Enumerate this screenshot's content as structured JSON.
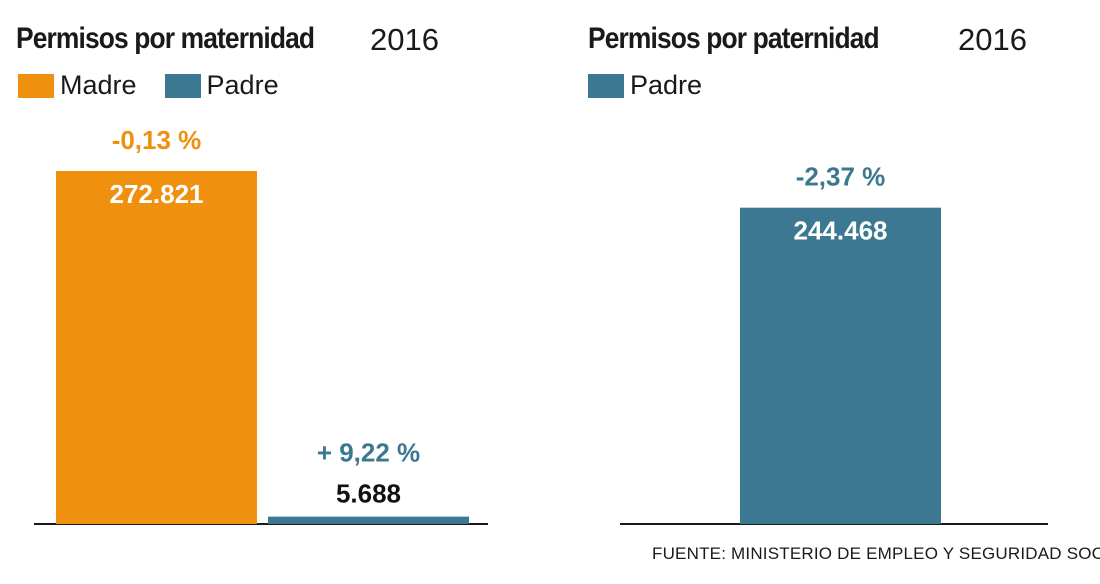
{
  "colors": {
    "madre": "#f0900f",
    "padre": "#3c7891",
    "axis": "#1a1a1a"
  },
  "chart_data": [
    {
      "type": "bar",
      "title": "Permisos por maternidad",
      "year": "2016",
      "categories": [
        "Madre",
        "Padre"
      ],
      "values": [
        272821,
        5688
      ],
      "value_labels": [
        "272.821",
        "5.688"
      ],
      "change_labels": [
        "-0,13 %",
        "+ 9,22 %"
      ],
      "legend": [
        {
          "label": "Madre",
          "color": "#f0900f"
        },
        {
          "label": "Padre",
          "color": "#3c7891"
        }
      ],
      "legend_position": "top-left",
      "grid": false
    },
    {
      "type": "bar",
      "title": "Permisos por paternidad",
      "year": "2016",
      "categories": [
        "Padre"
      ],
      "values": [
        244468
      ],
      "value_labels": [
        "244.468"
      ],
      "change_labels": [
        "-2,37 %"
      ],
      "legend": [
        {
          "label": "Padre",
          "color": "#3c7891"
        }
      ],
      "legend_position": "top-left",
      "grid": false
    }
  ],
  "source": "FUENTE: MINISTERIO DE EMPLEO Y SEGURIDAD SOCIAL"
}
